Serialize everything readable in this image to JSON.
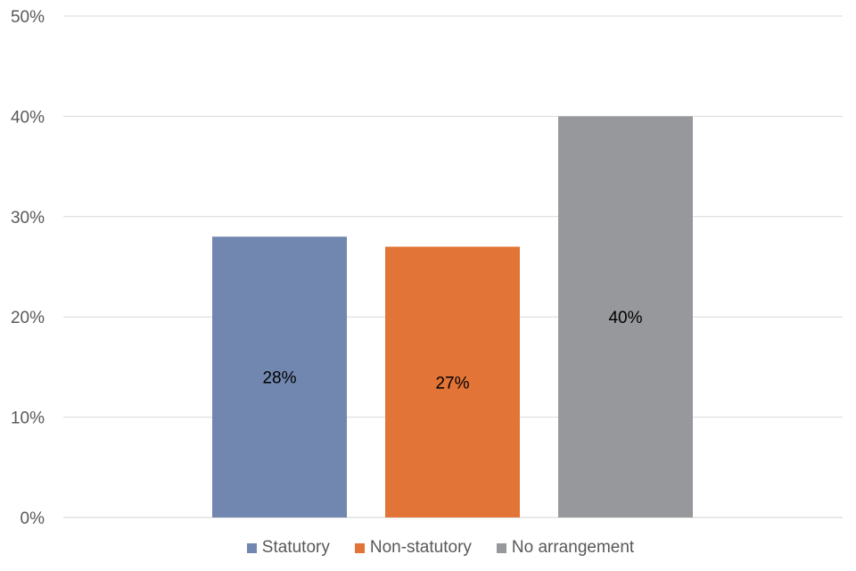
{
  "chart_data": {
    "type": "bar",
    "title": "",
    "xlabel": "",
    "ylabel": "",
    "categories": [
      "Statutory",
      "Non-statutory",
      "No arrangement"
    ],
    "values": [
      28,
      27,
      40
    ],
    "data_labels": [
      "28%",
      "27%",
      "40%"
    ],
    "colors": [
      "#7187b0",
      "#e37437",
      "#97989c"
    ],
    "ylim": [
      0,
      50
    ],
    "yticks": [
      0,
      10,
      20,
      30,
      40,
      50
    ],
    "ytick_labels": [
      "0%",
      "10%",
      "20%",
      "30%",
      "40%",
      "50%"
    ],
    "grid": true,
    "legend": {
      "position": "bottom",
      "entries": [
        "Statutory",
        "Non-statutory",
        "No arrangement"
      ]
    }
  }
}
